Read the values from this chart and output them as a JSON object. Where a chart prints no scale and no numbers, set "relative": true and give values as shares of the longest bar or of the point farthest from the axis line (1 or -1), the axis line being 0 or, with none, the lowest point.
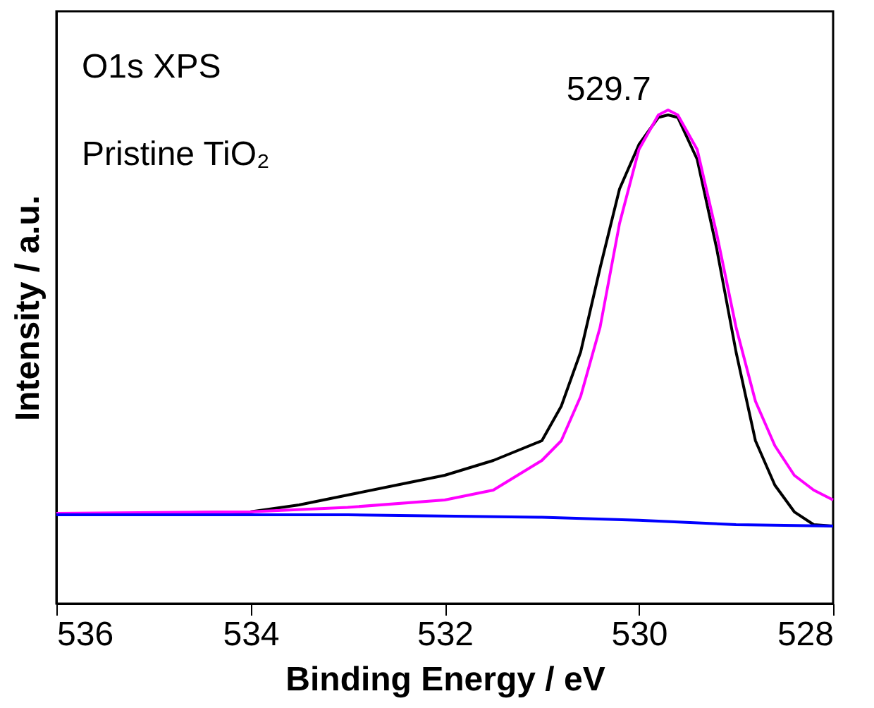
{
  "chart_data": {
    "type": "line",
    "relative": true,
    "xlabel": "Binding Energy / eV",
    "ylabel": "Intensity / a.u.",
    "xlim": [
      536,
      528
    ],
    "xticks": [
      536,
      534,
      532,
      530,
      528
    ],
    "grid": false,
    "tick_labels": "x",
    "annotations": [
      "O1s XPS",
      "Pristine TiO₂",
      {
        "text": "529.7",
        "x": 529.7,
        "y": 1.0
      }
    ],
    "series": [
      {
        "color": "#000000",
        "x": [
          536,
          534,
          533.5,
          533,
          532.5,
          532,
          531.5,
          531,
          530.8,
          530.6,
          530.4,
          530.2,
          530.0,
          529.8,
          529.7,
          529.6,
          529.4,
          529.2,
          529.0,
          528.8,
          528.6,
          528.4,
          528.2,
          528.0
        ],
        "values": [
          0.18,
          0.186,
          0.2,
          0.22,
          0.24,
          0.26,
          0.29,
          0.33,
          0.4,
          0.51,
          0.68,
          0.84,
          0.93,
          0.985,
          0.99,
          0.985,
          0.9,
          0.72,
          0.51,
          0.33,
          0.24,
          0.186,
          0.16,
          0.157
        ]
      },
      {
        "color": "#ff00ff",
        "x": [
          536,
          534,
          533,
          532,
          531.5,
          531,
          530.8,
          530.6,
          530.4,
          530.2,
          530.0,
          529.8,
          529.7,
          529.6,
          529.4,
          529.2,
          529.0,
          528.8,
          528.6,
          528.4,
          528.2,
          528.0
        ],
        "values": [
          0.183,
          0.186,
          0.195,
          0.21,
          0.23,
          0.29,
          0.33,
          0.42,
          0.56,
          0.77,
          0.92,
          0.99,
          1.0,
          0.99,
          0.92,
          0.75,
          0.56,
          0.41,
          0.32,
          0.26,
          0.23,
          0.21
        ]
      },
      {
        "color": "#0000ff",
        "x": [
          536,
          533,
          531,
          530,
          529,
          528
        ],
        "values": [
          0.18,
          0.18,
          0.175,
          0.169,
          0.16,
          0.157
        ]
      }
    ]
  }
}
